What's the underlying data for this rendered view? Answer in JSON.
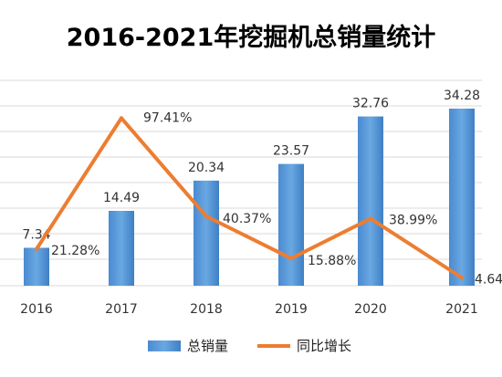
{
  "chart_data": {
    "type": "bar",
    "title": "2016-2021年挖掘机总销量统计",
    "categories": [
      "2016",
      "2017",
      "2018",
      "2019",
      "2020",
      "2021"
    ],
    "series": [
      {
        "name": "总销量",
        "type": "bar",
        "values": [
          7.34,
          14.49,
          20.34,
          23.57,
          32.76,
          34.28
        ],
        "value_labels": [
          "7.34",
          "14.49",
          "20.34",
          "23.57",
          "32.76",
          "34.28"
        ],
        "color": "#5b9bd5"
      },
      {
        "name": "同比增长",
        "type": "line",
        "values": [
          21.28,
          97.41,
          40.37,
          15.88,
          38.99,
          4.64
        ],
        "value_labels": [
          "21.28%",
          "97.41%",
          "40.37%",
          "15.88%",
          "38.99%",
          "4.64"
        ],
        "color": "#ed7d31"
      }
    ],
    "grid": true,
    "legend": "bottom",
    "colors": {
      "bar": "#5b9bd5",
      "line": "#ed7d31",
      "grid": "#d9d9d9",
      "title": "#2b2b2b"
    }
  }
}
